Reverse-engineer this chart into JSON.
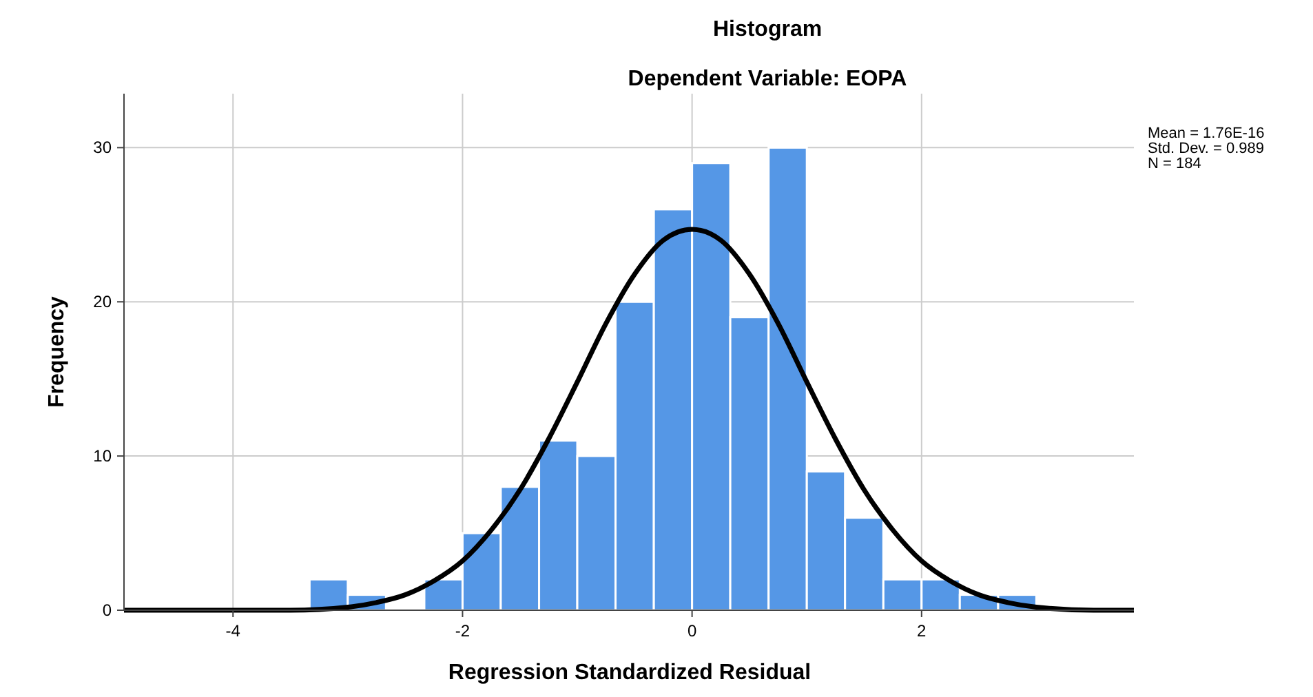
{
  "chart_data": {
    "type": "histogram",
    "title": "Histogram",
    "subtitle": "Dependent Variable: EOPA",
    "xlabel": "Regression Standardized Residual",
    "ylabel": "Frequency",
    "bins": [
      -3.333,
      -3,
      -2.667,
      -2.333,
      -2,
      -1.667,
      -1.333,
      -1,
      -0.667,
      -0.333,
      0,
      0.333,
      0.667,
      1,
      1.333,
      1.667,
      2,
      2.333,
      2.667,
      3
    ],
    "values": [
      2,
      1,
      0,
      2,
      5,
      8,
      11,
      10,
      20,
      26,
      29,
      19,
      30,
      9,
      6,
      2,
      2,
      1,
      1
    ],
    "color": "#5597e6",
    "series": [
      {
        "type": "line",
        "color": "#000000",
        "x": [
          -4.95,
          -4,
          -3.5,
          -3,
          -2.75,
          -2.5,
          -2.25,
          -2,
          -1.75,
          -1.5,
          -1.25,
          -1,
          -0.75,
          -0.5,
          -0.25,
          0,
          0.25,
          0.5,
          0.75,
          1,
          1.25,
          1.5,
          1.75,
          2,
          2.25,
          2.5,
          2.75,
          3,
          3.5,
          3.85
        ],
        "values": [
          0,
          0,
          0,
          0.2,
          0.5,
          1,
          1.9,
          3.2,
          5.2,
          7.8,
          11.1,
          14.8,
          18.6,
          21.8,
          24,
          24.7,
          24,
          21.8,
          18.6,
          14.8,
          11.1,
          7.8,
          5.2,
          3.2,
          1.9,
          1,
          0.5,
          0.2,
          0,
          0
        ]
      }
    ],
    "xlim": [
      -4.95,
      3.85
    ],
    "xticks": [
      -4,
      -2,
      0,
      2
    ],
    "ylim": [
      0,
      33.5
    ],
    "yticks": [
      0,
      10,
      20,
      30
    ],
    "grid": true,
    "line_style": "solid",
    "annotations": [
      "Mean = 1.76E-16",
      "Std. Dev. = 0.989",
      "N = 184"
    ]
  }
}
